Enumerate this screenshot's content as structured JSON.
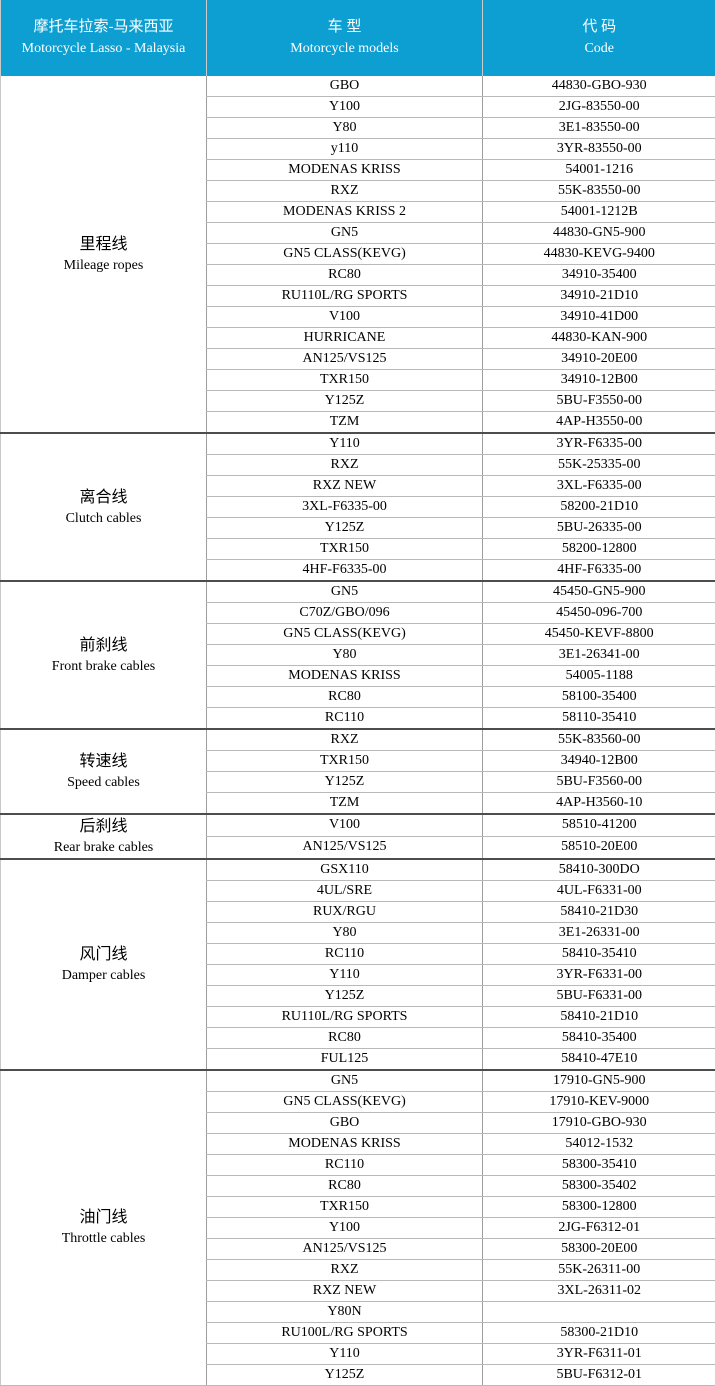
{
  "colors": {
    "header_bg": "#0d9fd2",
    "header_text": "#ffffff",
    "row_border": "#b9b9b9",
    "section_border": "#4d4d4d",
    "column_border": "#9e9e9e",
    "body_text": "#000000"
  },
  "header": {
    "category": {
      "zh": "摩托车拉索-马来西亚",
      "en": "Motorcycle Lasso - Malaysia"
    },
    "models": {
      "zh": "车 型",
      "en": "Motorcycle models"
    },
    "code": {
      "zh": "代 码",
      "en": "Code"
    }
  },
  "sections": [
    {
      "category_zh": "里程线",
      "category_en": "Mileage ropes",
      "rows": [
        {
          "model": "GBO",
          "code": "44830-GBO-930"
        },
        {
          "model": "Y100",
          "code": "2JG-83550-00"
        },
        {
          "model": "Y80",
          "code": "3E1-83550-00"
        },
        {
          "model": "y110",
          "code": "3YR-83550-00"
        },
        {
          "model": "MODENAS KRISS",
          "code": "54001-1216"
        },
        {
          "model": "RXZ",
          "code": "55K-83550-00"
        },
        {
          "model": "MODENAS KRISS 2",
          "code": "54001-1212B"
        },
        {
          "model": "GN5",
          "code": "44830-GN5-900"
        },
        {
          "model": "GN5 CLASS(KEVG)",
          "code": "44830-KEVG-9400"
        },
        {
          "model": "RC80",
          "code": "34910-35400"
        },
        {
          "model": "RU110L/RG SPORTS",
          "code": "34910-21D10"
        },
        {
          "model": "V100",
          "code": "34910-41D00"
        },
        {
          "model": "HURRICANE",
          "code": "44830-KAN-900"
        },
        {
          "model": "AN125/VS125",
          "code": "34910-20E00"
        },
        {
          "model": "TXR150",
          "code": "34910-12B00"
        },
        {
          "model": "Y125Z",
          "code": "5BU-F3550-00"
        },
        {
          "model": "TZM",
          "code": "4AP-H3550-00"
        }
      ]
    },
    {
      "category_zh": "离合线",
      "category_en": "Clutch cables",
      "rows": [
        {
          "model": "Y110",
          "code": "3YR-F6335-00"
        },
        {
          "model": "RXZ",
          "code": "55K-25335-00"
        },
        {
          "model": "RXZ NEW",
          "code": "3XL-F6335-00"
        },
        {
          "model": "3XL-F6335-00",
          "code": "58200-21D10"
        },
        {
          "model": "Y125Z",
          "code": "5BU-26335-00"
        },
        {
          "model": "TXR150",
          "code": "58200-12800"
        },
        {
          "model": "4HF-F6335-00",
          "code": "4HF-F6335-00"
        }
      ]
    },
    {
      "category_zh": "前刹线",
      "category_en": "Front brake cables",
      "rows": [
        {
          "model": "GN5",
          "code": "45450-GN5-900"
        },
        {
          "model": "C70Z/GBO/096",
          "code": "45450-096-700"
        },
        {
          "model": "GN5 CLASS(KEVG)",
          "code": "45450-KEVF-8800"
        },
        {
          "model": "Y80",
          "code": "3E1-26341-00"
        },
        {
          "model": "MODENAS KRISS",
          "code": "54005-1188"
        },
        {
          "model": "RC80",
          "code": "58100-35400"
        },
        {
          "model": "RC110",
          "code": "58110-35410"
        }
      ]
    },
    {
      "category_zh": "转速线",
      "category_en": "Speed cables",
      "rows": [
        {
          "model": "RXZ",
          "code": "55K-83560-00"
        },
        {
          "model": "TXR150",
          "code": "34940-12B00"
        },
        {
          "model": "Y125Z",
          "code": "5BU-F3560-00"
        },
        {
          "model": "TZM",
          "code": "4AP-H3560-10"
        }
      ]
    },
    {
      "category_zh": "后刹线",
      "category_en": "Rear brake cables",
      "rows": [
        {
          "model": "V100",
          "code": "58510-41200"
        },
        {
          "model": "AN125/VS125",
          "code": "58510-20E00"
        }
      ]
    },
    {
      "category_zh": "风门线",
      "category_en": "Damper cables",
      "rows": [
        {
          "model": "GSX110",
          "code": "58410-300DO"
        },
        {
          "model": "4UL/SRE",
          "code": "4UL-F6331-00"
        },
        {
          "model": "RUX/RGU",
          "code": "58410-21D30"
        },
        {
          "model": "Y80",
          "code": "3E1-26331-00"
        },
        {
          "model": "RC110",
          "code": "58410-35410"
        },
        {
          "model": "Y110",
          "code": "3YR-F6331-00"
        },
        {
          "model": "Y125Z",
          "code": "5BU-F6331-00"
        },
        {
          "model": "RU110L/RG SPORTS",
          "code": "58410-21D10"
        },
        {
          "model": "RC80",
          "code": "58410-35400"
        },
        {
          "model": "FUL125",
          "code": "58410-47E10"
        }
      ]
    },
    {
      "category_zh": "油门线",
      "category_en": "Throttle cables",
      "rows": [
        {
          "model": "GN5",
          "code": "17910-GN5-900"
        },
        {
          "model": "GN5 CLASS(KEVG)",
          "code": "17910-KEV-9000"
        },
        {
          "model": "GBO",
          "code": "17910-GBO-930"
        },
        {
          "model": "MODENAS KRISS",
          "code": "54012-1532"
        },
        {
          "model": "RC110",
          "code": "58300-35410"
        },
        {
          "model": "RC80",
          "code": "58300-35402"
        },
        {
          "model": "TXR150",
          "code": "58300-12800"
        },
        {
          "model": "Y100",
          "code": "2JG-F6312-01"
        },
        {
          "model": "AN125/VS125",
          "code": "58300-20E00"
        },
        {
          "model": "RXZ",
          "code": "55K-26311-00"
        },
        {
          "model": "RXZ NEW",
          "code": "3XL-26311-02"
        },
        {
          "model": "Y80N",
          "code": ""
        },
        {
          "model": "RU100L/RG SPORTS",
          "code": "58300-21D10"
        },
        {
          "model": "Y110",
          "code": "3YR-F6311-01"
        },
        {
          "model": "Y125Z",
          "code": "5BU-F6312-01"
        }
      ]
    }
  ]
}
